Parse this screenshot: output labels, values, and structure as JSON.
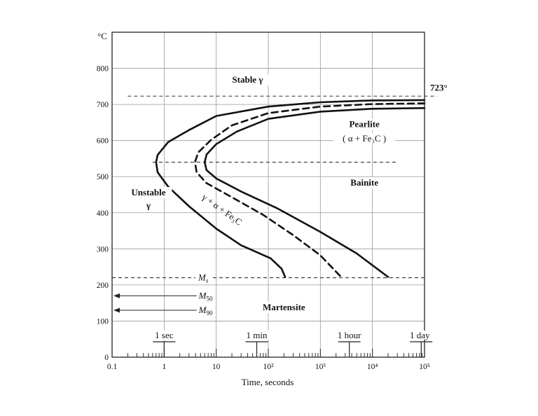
{
  "chart_data": {
    "type": "line",
    "title": "",
    "xlabel": "Time, seconds",
    "ylabel": "°C",
    "x_scale": "log",
    "xlim": [
      0.1,
      100000
    ],
    "ylim": [
      0,
      900
    ],
    "grid": true,
    "x_ticks": [
      {
        "value": 0.1,
        "label": "0.1"
      },
      {
        "value": 1,
        "label": "1"
      },
      {
        "value": 10,
        "label": "10"
      },
      {
        "value": 100,
        "label": "10²"
      },
      {
        "value": 1000,
        "label": "10³"
      },
      {
        "value": 10000,
        "label": "10⁴"
      },
      {
        "value": 100000,
        "label": "10⁵"
      }
    ],
    "y_ticks": [
      {
        "value": 0,
        "label": "0"
      },
      {
        "value": 100,
        "label": "100"
      },
      {
        "value": 200,
        "label": "200"
      },
      {
        "value": 300,
        "label": "300"
      },
      {
        "value": 400,
        "label": "400"
      },
      {
        "value": 500,
        "label": "500"
      },
      {
        "value": 600,
        "label": "600"
      },
      {
        "value": 700,
        "label": "700"
      },
      {
        "value": 800,
        "label": "800"
      }
    ],
    "time_markers": [
      {
        "label": "1 sec",
        "value": 1
      },
      {
        "label": "1 min",
        "value": 60
      },
      {
        "label": "1 hour",
        "value": 3600
      },
      {
        "label": "1 day",
        "value": 86400
      }
    ],
    "horizontal_lines": [
      {
        "label": "723°",
        "y": 723,
        "style": "dashed"
      },
      {
        "label": "",
        "y": 540,
        "style": "dashed"
      },
      {
        "label": "Ms",
        "y": 220,
        "style": "dashed"
      },
      {
        "label": "M50",
        "y": 170,
        "style": "arrow"
      },
      {
        "label": "M90",
        "y": 130,
        "style": "arrow"
      }
    ],
    "series": [
      {
        "style": "solid",
        "points": [
          [
            100000,
            712
          ],
          [
            10000,
            711
          ],
          [
            1000,
            706
          ],
          [
            100,
            694
          ],
          [
            10,
            668
          ],
          [
            3,
            629
          ],
          [
            1.2,
            596
          ],
          [
            0.75,
            560
          ],
          [
            0.7,
            540
          ],
          [
            0.75,
            512
          ],
          [
            1.2,
            472
          ],
          [
            3,
            418
          ],
          [
            10,
            356
          ],
          [
            30,
            310
          ],
          [
            110,
            274
          ],
          [
            180,
            245
          ],
          [
            210,
            222
          ]
        ]
      },
      {
        "style": "dashed",
        "points": [
          [
            100000,
            703
          ],
          [
            10000,
            701
          ],
          [
            1000,
            694
          ],
          [
            100,
            676
          ],
          [
            20,
            642
          ],
          [
            8,
            602
          ],
          [
            4.5,
            567
          ],
          [
            3.9,
            540
          ],
          [
            4.2,
            512
          ],
          [
            6.5,
            482
          ],
          [
            20,
            443
          ],
          [
            80,
            394
          ],
          [
            300,
            338
          ],
          [
            1000,
            282
          ],
          [
            2500,
            222
          ]
        ]
      },
      {
        "style": "solid",
        "points": [
          [
            100000,
            690
          ],
          [
            10000,
            688
          ],
          [
            1000,
            680
          ],
          [
            100,
            660
          ],
          [
            25,
            625
          ],
          [
            10,
            590
          ],
          [
            6.5,
            561
          ],
          [
            6,
            540
          ],
          [
            6.5,
            518
          ],
          [
            10,
            495
          ],
          [
            30,
            459
          ],
          [
            150,
            412
          ],
          [
            1000,
            347
          ],
          [
            5000,
            287
          ],
          [
            20000,
            222
          ]
        ]
      }
    ],
    "annotations": [
      {
        "text": "Stable γ",
        "x": 40,
        "y": 760
      },
      {
        "text": "Pearlite",
        "x": 7000,
        "y": 637
      },
      {
        "text": "( α + Fe₃C )",
        "x": 7000,
        "y": 597
      },
      {
        "text": "Bainite",
        "x": 7000,
        "y": 475
      },
      {
        "text": "Unstable",
        "x": 0.5,
        "y": 448
      },
      {
        "text": "γ",
        "x": 0.5,
        "y": 412
      },
      {
        "text": "γ + α + Fe₃C",
        "x": 12,
        "y": 402
      },
      {
        "text": "Martensite",
        "x": 200,
        "y": 130
      }
    ]
  }
}
